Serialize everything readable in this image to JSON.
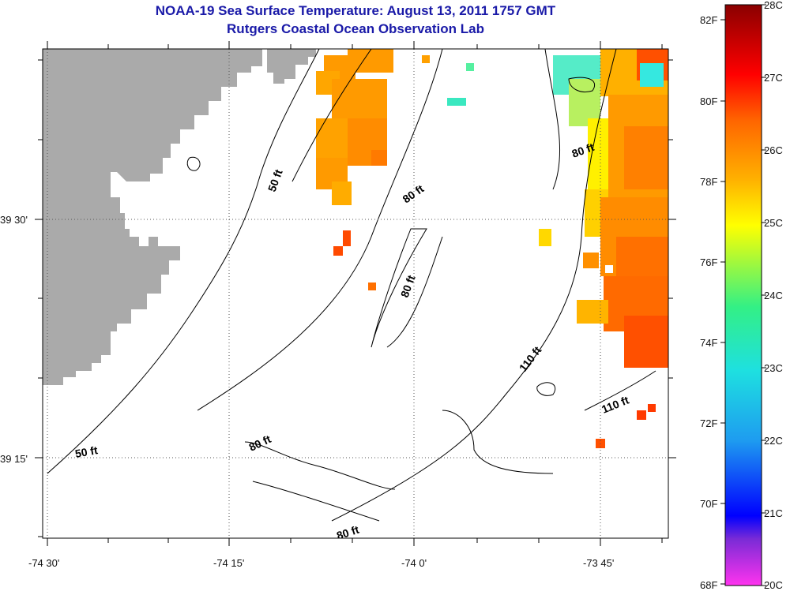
{
  "header": {
    "title": "NOAA-19 Sea Surface Temperature:  August 13, 2011 1757 GMT",
    "subtitle": "Rutgers Coastal Ocean Observation Lab"
  },
  "map": {
    "lon_ticks": [
      "-74 30'",
      "-74 15'",
      "-74 0'",
      "-73 45'"
    ],
    "lat_ticks": [
      "39 30'",
      "39 15'"
    ],
    "land_color": "#aaaaaa",
    "contour_labels": [
      "50 ft",
      "80 ft",
      "80 ft",
      "80 ft",
      "80 ft",
      "110 ft",
      "110 ft",
      "50 ft",
      "80 ft"
    ]
  },
  "colorbar": {
    "fahrenheit": [
      "82F",
      "80F",
      "78F",
      "76F",
      "74F",
      "72F",
      "70F",
      "68F"
    ],
    "celsius": [
      "28C",
      "27C",
      "26C",
      "25C",
      "24C",
      "23C",
      "22C",
      "21C",
      "20C"
    ],
    "stops": [
      "#ff33ee",
      "#7a2bd6",
      "#0000ff",
      "#1e9cf0",
      "#1ee0e0",
      "#33f085",
      "#ffff00",
      "#ffb000",
      "#ff6600",
      "#ff0000",
      "#8a0000"
    ]
  }
}
